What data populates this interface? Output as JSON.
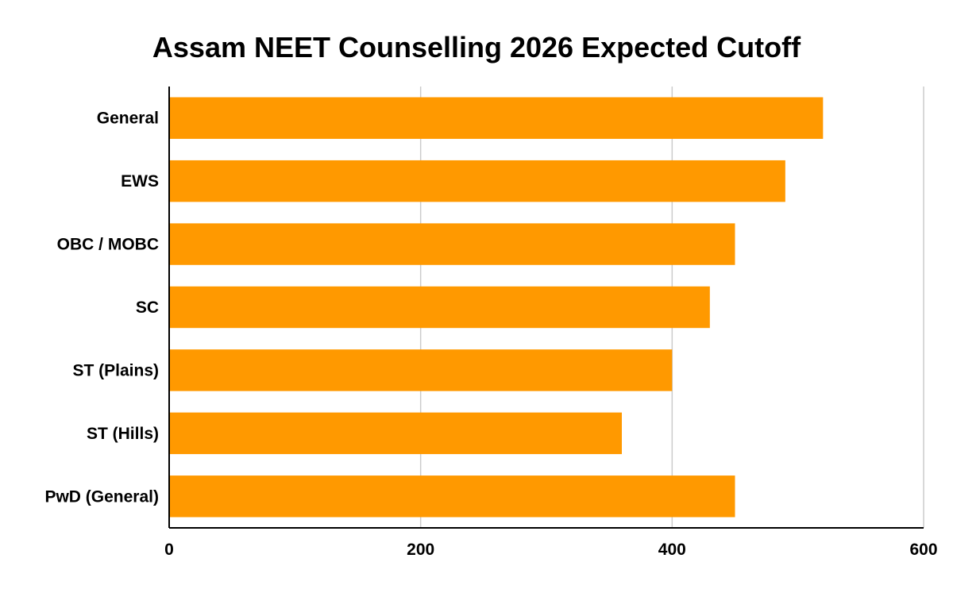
{
  "chart_data": {
    "type": "bar",
    "orientation": "horizontal",
    "title": "Assam NEET Counselling 2026 Expected Cutoff",
    "xlabel": "",
    "ylabel": "",
    "categories": [
      "General",
      "EWS",
      "OBC / MOBC",
      "SC",
      "ST (Plains)",
      "ST (Hills)",
      "PwD (General)"
    ],
    "values": [
      520,
      490,
      450,
      430,
      400,
      360,
      450
    ],
    "xlim": [
      0,
      600
    ],
    "xticks": [
      "0",
      "200",
      "400",
      "600"
    ],
    "grid": true,
    "legend": "none",
    "colors": {
      "bar": "#FF9900",
      "grid": "#CCCCCC",
      "axis": "#000000"
    }
  }
}
